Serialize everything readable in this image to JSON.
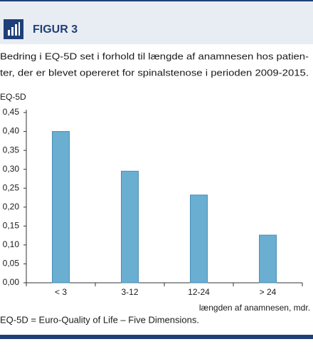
{
  "header": {
    "label": "FIGUR 3"
  },
  "caption": [
    "Bedring i EQ-5D set i forhold til længde af anamnesen hos patien-",
    "ter, der er blevet opereret for spinalstenose i perioden 2009-2015."
  ],
  "chart_data": {
    "type": "bar",
    "y_label": "EQ-5D",
    "x_label": "længden af anamnesen, mdr.",
    "categories": [
      "< 3",
      "3-12",
      "12-24",
      "> 24"
    ],
    "values": [
      0.4,
      0.295,
      0.232,
      0.126
    ],
    "color": "#6aaed2",
    "ylim": [
      0,
      0.45
    ],
    "yticks": [
      {
        "value": 0,
        "label": "0,00"
      },
      {
        "value": 0.05,
        "label": "0,05"
      },
      {
        "value": 0.1,
        "label": "0,10"
      },
      {
        "value": 0.15,
        "label": "0,15"
      },
      {
        "value": 0.2,
        "label": "0,20"
      },
      {
        "value": 0.25,
        "label": "0,25"
      },
      {
        "value": 0.3,
        "label": "0,30"
      },
      {
        "value": 0.35,
        "label": "0,35"
      },
      {
        "value": 0.4,
        "label": "0,40"
      },
      {
        "value": 0.45,
        "label": "0,45"
      }
    ],
    "grid": false
  },
  "footnote": "EQ-5D = Euro-Quality of Life – Five Dimensions."
}
